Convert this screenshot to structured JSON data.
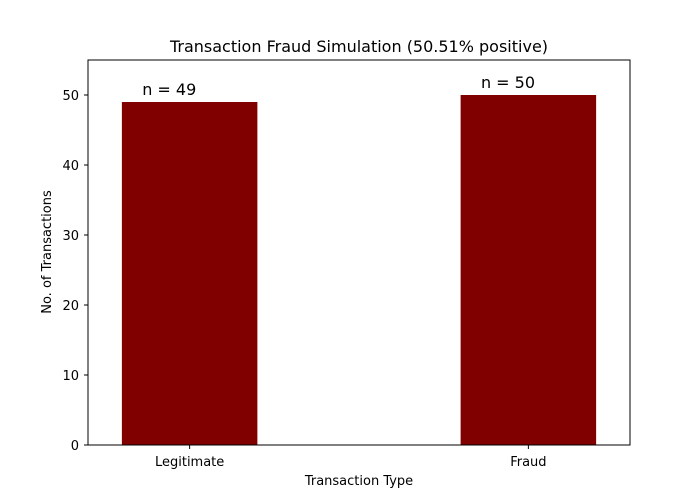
{
  "chart_data": {
    "type": "bar",
    "title": "Transaction Fraud Simulation (50.51% positive)",
    "xlabel": "Transaction Type",
    "ylabel": "No. of Transactions",
    "categories": [
      "Legitimate",
      "Fraud"
    ],
    "values": [
      49,
      50
    ],
    "data_labels": [
      "n = 49",
      "n = 50"
    ],
    "ylim": [
      0,
      55
    ],
    "yticks": [
      0,
      10,
      20,
      30,
      40,
      50
    ],
    "bar_color": "#800000",
    "grid": false,
    "legend": "none"
  }
}
